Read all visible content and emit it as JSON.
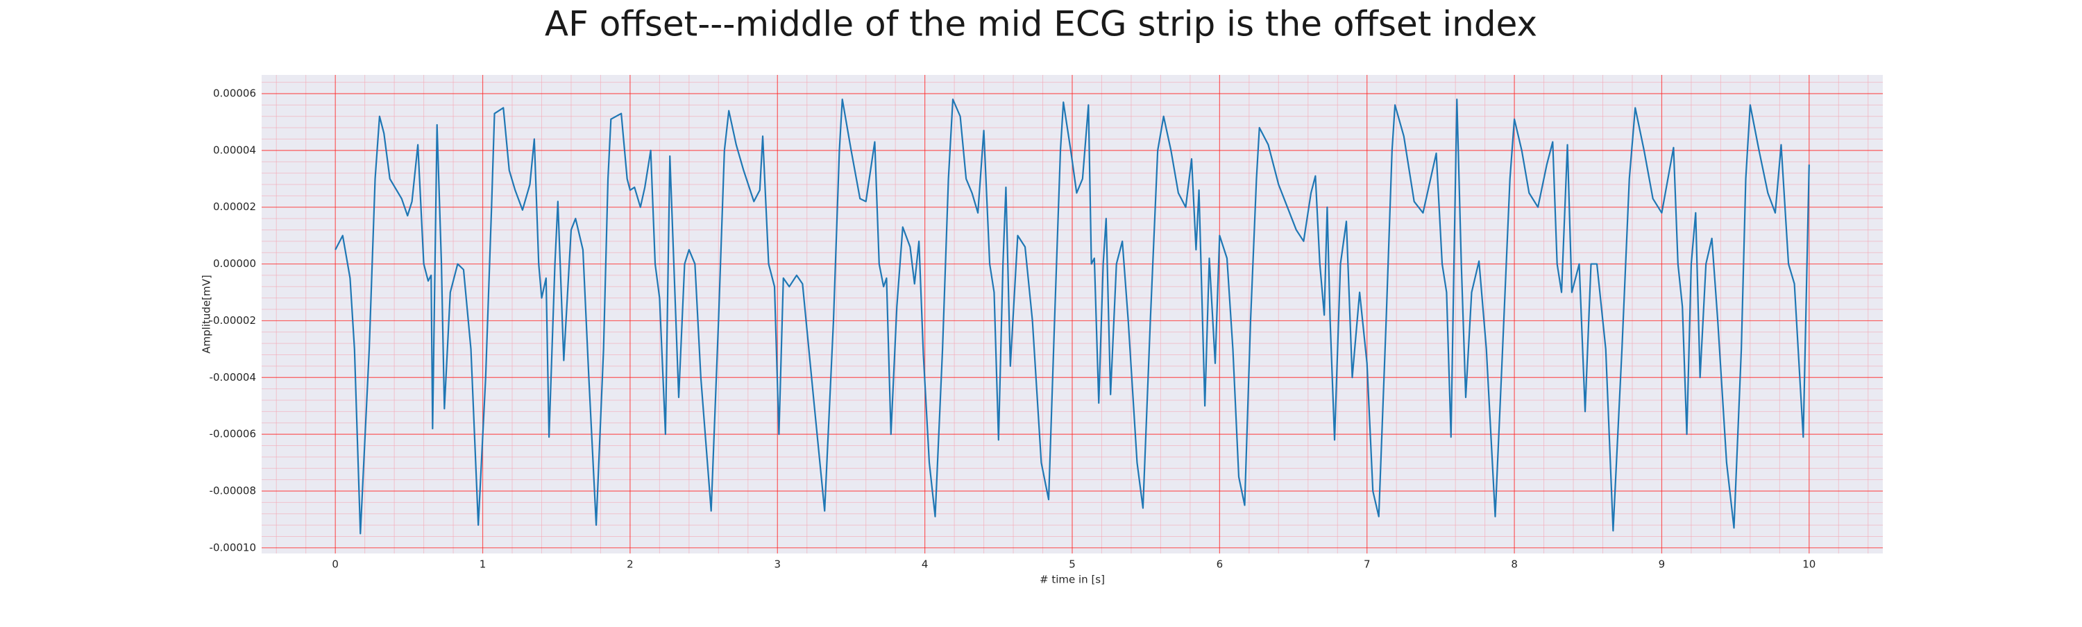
{
  "chart_data": {
    "type": "line",
    "title": "AF offset---middle of the mid ECG strip is the offset index",
    "xlabel": "# time in [s]",
    "ylabel": "Amplitude[mV]",
    "xlim": [
      -0.5,
      10.5
    ],
    "xticks": [
      0,
      1,
      2,
      3,
      4,
      5,
      6,
      7,
      8,
      9,
      10
    ],
    "ylim": [
      -0.000102,
      6.66e-05
    ],
    "yticks": [
      {
        "value": -0.0001,
        "label": "-0.00010"
      },
      {
        "value": -8e-05,
        "label": "-0.00008"
      },
      {
        "value": -6e-05,
        "label": "-0.00006"
      },
      {
        "value": -4e-05,
        "label": "-0.00004"
      },
      {
        "value": -2e-05,
        "label": "-0.00002"
      },
      {
        "value": 0,
        "label": "0.00000"
      },
      {
        "value": 2e-05,
        "label": "0.00002"
      },
      {
        "value": 4e-05,
        "label": "0.00004"
      },
      {
        "value": 6e-05,
        "label": "0.00006"
      }
    ],
    "grid": true,
    "x": [
      0,
      0.05,
      0.1,
      0.13,
      0.17,
      0.23,
      0.27,
      0.3,
      0.33,
      0.37,
      0.45,
      0.49,
      0.52,
      0.56,
      0.6,
      0.63,
      0.65,
      0.66,
      0.69,
      0.72,
      0.74,
      0.78,
      0.83,
      0.87,
      0.92,
      0.97,
      1.02,
      1.06,
      1.08,
      1.14,
      1.18,
      1.22,
      1.27,
      1.32,
      1.35,
      1.38,
      1.4,
      1.43,
      1.45,
      1.49,
      1.51,
      1.55,
      1.6,
      1.63,
      1.68,
      1.72,
      1.77,
      1.82,
      1.85,
      1.87,
      1.94,
      1.98,
      2.0,
      2.03,
      2.07,
      2.1,
      2.14,
      2.17,
      2.2,
      2.24,
      2.27,
      2.33,
      2.37,
      2.4,
      2.44,
      2.48,
      2.55,
      2.6,
      2.64,
      2.67,
      2.72,
      2.77,
      2.84,
      2.88,
      2.9,
      2.94,
      2.98,
      3.01,
      3.04,
      3.08,
      3.13,
      3.17,
      3.25,
      3.32,
      3.38,
      3.42,
      3.44,
      3.5,
      3.56,
      3.6,
      3.66,
      3.69,
      3.72,
      3.74,
      3.77,
      3.81,
      3.85,
      3.9,
      3.93,
      3.96,
      3.99,
      4.03,
      4.07,
      4.12,
      4.16,
      4.19,
      4.24,
      4.28,
      4.32,
      4.36,
      4.4,
      4.44,
      4.47,
      4.5,
      4.53,
      4.55,
      4.58,
      4.63,
      4.68,
      4.73,
      4.79,
      4.84,
      4.88,
      4.92,
      4.94,
      4.99,
      5.03,
      5.07,
      5.11,
      5.13,
      5.15,
      5.18,
      5.21,
      5.23,
      5.26,
      5.3,
      5.34,
      5.38,
      5.44,
      5.48,
      5.53,
      5.58,
      5.62,
      5.67,
      5.72,
      5.77,
      5.81,
      5.84,
      5.86,
      5.9,
      5.93,
      5.97,
      6.0,
      6.05,
      6.09,
      6.13,
      6.17,
      6.21,
      6.25,
      6.27,
      6.33,
      6.4,
      6.46,
      6.52,
      6.57,
      6.62,
      6.65,
      6.68,
      6.71,
      6.73,
      6.75,
      6.78,
      6.82,
      6.86,
      6.9,
      6.95,
      7.0,
      7.04,
      7.08,
      7.13,
      7.17,
      7.19,
      7.25,
      7.32,
      7.38,
      7.47,
      7.51,
      7.54,
      7.57,
      7.59,
      7.61,
      7.64,
      7.67,
      7.71,
      7.76,
      7.81,
      7.87,
      7.92,
      7.97,
      8.0,
      8.05,
      8.1,
      8.16,
      8.22,
      8.26,
      8.29,
      8.32,
      8.36,
      8.39,
      8.44,
      8.48,
      8.52,
      8.56,
      8.62,
      8.67,
      8.73,
      8.78,
      8.82,
      8.88,
      8.94,
      9.0,
      9.08,
      9.11,
      9.14,
      9.17,
      9.2,
      9.23,
      9.26,
      9.3,
      9.34,
      9.38,
      9.44,
      9.49,
      9.54,
      9.57,
      9.6,
      9.66,
      9.72,
      9.77,
      9.81,
      9.86,
      9.9,
      9.96,
      10.0
    ],
    "series": [
      {
        "color": "#1f77b4",
        "values": [
          5e-06,
          1e-05,
          -5e-06,
          -3e-05,
          -9.5e-05,
          -3e-05,
          3e-05,
          5.2e-05,
          4.6e-05,
          3e-05,
          2.3e-05,
          1.7e-05,
          2.2e-05,
          4.2e-05,
          0,
          -6e-06,
          -4e-06,
          -5.8e-05,
          4.9e-05,
          0,
          -5.1e-05,
          -1e-05,
          0,
          -2e-06,
          -3e-05,
          -9.2e-05,
          -4e-05,
          2e-05,
          5.3e-05,
          5.5e-05,
          3.3e-05,
          2.6e-05,
          1.9e-05,
          2.8e-05,
          4.4e-05,
          0,
          -1.2e-05,
          -5e-06,
          -6.1e-05,
          0,
          2.2e-05,
          -3.4e-05,
          1.2e-05,
          1.6e-05,
          5e-06,
          -4e-05,
          -9.2e-05,
          -3e-05,
          3e-05,
          5.1e-05,
          5.3e-05,
          3e-05,
          2.6e-05,
          2.7e-05,
          2e-05,
          2.7e-05,
          4e-05,
          0,
          -1.2e-05,
          -6e-05,
          3.8e-05,
          -4.7e-05,
          0,
          5e-06,
          0,
          -4e-05,
          -8.7e-05,
          -2e-05,
          4e-05,
          5.4e-05,
          4.2e-05,
          3.3e-05,
          2.2e-05,
          2.6e-05,
          4.5e-05,
          0,
          -8e-06,
          -6e-05,
          -5e-06,
          -8e-06,
          -4e-06,
          -7e-06,
          -5e-05,
          -8.7e-05,
          -2e-05,
          4e-05,
          5.8e-05,
          4e-05,
          2.3e-05,
          2.2e-05,
          4.3e-05,
          0,
          -8e-06,
          -5e-06,
          -6e-05,
          -1.5e-05,
          1.3e-05,
          6e-06,
          -7e-06,
          8e-06,
          -3.2e-05,
          -7e-05,
          -8.9e-05,
          -3e-05,
          3e-05,
          5.8e-05,
          5.2e-05,
          3e-05,
          2.5e-05,
          1.8e-05,
          4.7e-05,
          0,
          -1e-05,
          -6.2e-05,
          0,
          2.7e-05,
          -3.6e-05,
          1e-05,
          6e-06,
          -2e-05,
          -7e-05,
          -8.3e-05,
          -2e-05,
          4e-05,
          5.7e-05,
          4e-05,
          2.5e-05,
          3e-05,
          5.6e-05,
          0,
          2e-06,
          -4.9e-05,
          0,
          1.6e-05,
          -4.6e-05,
          0,
          8e-06,
          -2e-05,
          -7e-05,
          -8.6e-05,
          -2e-05,
          4e-05,
          5.2e-05,
          4e-05,
          2.5e-05,
          2e-05,
          3.7e-05,
          5e-06,
          2.6e-05,
          -5e-05,
          2e-06,
          -3.5e-05,
          1e-05,
          2e-06,
          -3e-05,
          -7.5e-05,
          -8.5e-05,
          -2e-05,
          3e-05,
          4.8e-05,
          4.2e-05,
          2.8e-05,
          2e-05,
          1.2e-05,
          8e-06,
          2.5e-05,
          3.1e-05,
          0,
          -1.8e-05,
          2e-05,
          -2e-05,
          -6.2e-05,
          0,
          1.5e-05,
          -4e-05,
          -1e-05,
          -3.5e-05,
          -8e-05,
          -8.9e-05,
          -2e-05,
          4e-05,
          5.6e-05,
          4.5e-05,
          2.2e-05,
          1.8e-05,
          3.9e-05,
          0,
          -1e-05,
          -6.1e-05,
          0,
          5.8e-05,
          0,
          -4.7e-05,
          -1e-05,
          1e-06,
          -3e-05,
          -8.9e-05,
          -3e-05,
          3e-05,
          5.1e-05,
          4e-05,
          2.5e-05,
          2e-05,
          3.5e-05,
          4.3e-05,
          0,
          -1e-05,
          4.2e-05,
          -1e-05,
          0,
          -5.2e-05,
          0,
          0,
          -3e-05,
          -9.4e-05,
          -3e-05,
          3e-05,
          5.5e-05,
          4e-05,
          2.3e-05,
          1.8e-05,
          4.1e-05,
          0,
          -1.5e-05,
          -6e-05,
          0,
          1.8e-05,
          -4e-05,
          0,
          9e-06,
          -2e-05,
          -7e-05,
          -9.3e-05,
          -3e-05,
          3e-05,
          5.6e-05,
          4e-05,
          2.5e-05,
          1.8e-05,
          4.2e-05,
          0,
          -7e-06,
          -6.1e-05,
          3.5e-05
        ]
      }
    ]
  }
}
